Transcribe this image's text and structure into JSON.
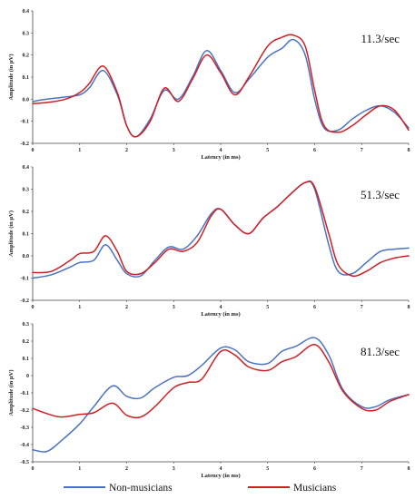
{
  "legend": [
    {
      "label": "Non-musicians",
      "color": "#4a72c4"
    },
    {
      "label": "Musicians",
      "color": "#d01f24"
    }
  ],
  "chart_data": [
    {
      "type": "line",
      "annotation": "11.3/sec",
      "xlabel": "Latency (in ms)",
      "ylabel": "Amplitude (in µV)",
      "xlim": [
        0,
        8
      ],
      "ylim": [
        -0.2,
        0.4
      ],
      "xticks": [
        0,
        1,
        2,
        3,
        4,
        5,
        6,
        7,
        8
      ],
      "yticks": [
        -0.2,
        -0.1,
        0.0,
        0.1,
        0.2,
        0.3,
        0.4
      ],
      "ytick_labels": [
        "-0.2",
        "-0.1",
        "0.0",
        "0.1",
        "0.2",
        "0.3",
        "0.4"
      ],
      "series": [
        {
          "name": "Non-musicians",
          "color": "#4a72c4",
          "x": [
            0,
            0.3,
            0.7,
            1.0,
            1.2,
            1.5,
            1.8,
            2.0,
            2.2,
            2.5,
            2.8,
            3.1,
            3.4,
            3.7,
            4.0,
            4.3,
            4.6,
            5.0,
            5.3,
            5.55,
            5.8,
            6.0,
            6.2,
            6.5,
            6.8,
            7.1,
            7.4,
            7.7,
            8.0
          ],
          "y": [
            -0.01,
            0.0,
            0.01,
            0.02,
            0.05,
            0.13,
            0.02,
            -0.12,
            -0.17,
            -0.09,
            0.04,
            0.0,
            0.1,
            0.22,
            0.13,
            0.03,
            0.09,
            0.19,
            0.23,
            0.27,
            0.2,
            0.0,
            -0.13,
            -0.14,
            -0.09,
            -0.05,
            -0.03,
            -0.06,
            -0.13
          ]
        },
        {
          "name": "Musicians",
          "color": "#d01f24",
          "x": [
            0,
            0.3,
            0.7,
            1.0,
            1.2,
            1.5,
            1.8,
            2.0,
            2.2,
            2.5,
            2.8,
            3.1,
            3.4,
            3.7,
            4.0,
            4.3,
            4.6,
            5.0,
            5.3,
            5.55,
            5.8,
            6.0,
            6.2,
            6.5,
            6.8,
            7.1,
            7.4,
            7.7,
            8.0
          ],
          "y": [
            -0.02,
            -0.015,
            0.0,
            0.03,
            0.07,
            0.15,
            0.03,
            -0.12,
            -0.17,
            -0.1,
            0.05,
            -0.01,
            0.09,
            0.2,
            0.12,
            0.02,
            0.1,
            0.24,
            0.28,
            0.29,
            0.24,
            0.04,
            -0.12,
            -0.15,
            -0.12,
            -0.07,
            -0.03,
            -0.05,
            -0.14
          ]
        }
      ]
    },
    {
      "type": "line",
      "annotation": "51.3/sec",
      "xlabel": "Latency (in ms)",
      "ylabel": "Amplitude (in µV)",
      "xlim": [
        0,
        8
      ],
      "ylim": [
        -0.2,
        0.4
      ],
      "xticks": [
        0,
        1,
        2,
        3,
        4,
        5,
        6,
        7,
        8
      ],
      "yticks": [
        -0.2,
        -0.1,
        0.0,
        0.1,
        0.2,
        0.3,
        0.4
      ],
      "ytick_labels": [
        "-0.2",
        "-0.1",
        "0.0",
        "0.1",
        "0.2",
        "0.3",
        "0.4"
      ],
      "series": [
        {
          "name": "Non-musicians",
          "color": "#4a72c4",
          "x": [
            0,
            0.4,
            0.8,
            1.0,
            1.3,
            1.55,
            1.8,
            2.0,
            2.3,
            2.6,
            2.9,
            3.2,
            3.5,
            3.8,
            4.0,
            4.3,
            4.6,
            4.9,
            5.2,
            5.5,
            5.8,
            6.0,
            6.3,
            6.5,
            6.8,
            7.1,
            7.4,
            7.7,
            8.0
          ],
          "y": [
            -0.1,
            -0.085,
            -0.05,
            -0.03,
            -0.02,
            0.05,
            -0.02,
            -0.08,
            -0.09,
            -0.02,
            0.04,
            0.03,
            0.09,
            0.19,
            0.21,
            0.14,
            0.1,
            0.17,
            0.22,
            0.28,
            0.33,
            0.3,
            0.05,
            -0.07,
            -0.08,
            -0.03,
            0.02,
            0.03,
            0.035
          ]
        },
        {
          "name": "Musicians",
          "color": "#d01f24",
          "x": [
            0,
            0.4,
            0.8,
            1.0,
            1.3,
            1.55,
            1.8,
            2.0,
            2.3,
            2.6,
            2.9,
            3.2,
            3.5,
            3.8,
            4.0,
            4.3,
            4.6,
            4.9,
            5.2,
            5.5,
            5.8,
            6.0,
            6.3,
            6.5,
            6.8,
            7.1,
            7.4,
            7.7,
            8.0
          ],
          "y": [
            -0.075,
            -0.07,
            -0.02,
            0.01,
            0.02,
            0.09,
            0.02,
            -0.07,
            -0.08,
            -0.03,
            0.03,
            0.02,
            0.06,
            0.18,
            0.21,
            0.14,
            0.1,
            0.17,
            0.22,
            0.28,
            0.33,
            0.31,
            0.1,
            -0.04,
            -0.09,
            -0.07,
            -0.03,
            -0.01,
            0.0
          ]
        }
      ]
    },
    {
      "type": "line",
      "annotation": "81.3/sec",
      "xlabel": "Latency (in ms)",
      "ylabel": "Amplitude (in µV)",
      "xlim": [
        0,
        8
      ],
      "ylim": [
        -0.5,
        0.3
      ],
      "xticks": [
        0,
        1,
        2,
        3,
        4,
        5,
        6,
        7,
        8
      ],
      "yticks": [
        -0.5,
        -0.4,
        -0.3,
        -0.2,
        -0.1,
        0.0,
        0.1,
        0.2,
        0.3
      ],
      "ytick_labels": [
        "-0.5",
        "-0.4",
        "-0.3",
        "-0.2",
        "-0.1",
        "0",
        "0.1",
        "0.2",
        "0.3"
      ],
      "series": [
        {
          "name": "Non-musicians",
          "color": "#4a72c4",
          "x": [
            0,
            0.3,
            0.6,
            1.0,
            1.3,
            1.7,
            2.0,
            2.3,
            2.6,
            3.0,
            3.3,
            3.6,
            4.0,
            4.3,
            4.6,
            5.0,
            5.3,
            5.6,
            6.0,
            6.3,
            6.6,
            7.0,
            7.3,
            7.6,
            8.0
          ],
          "y": [
            -0.43,
            -0.44,
            -0.38,
            -0.28,
            -0.18,
            -0.06,
            -0.12,
            -0.13,
            -0.07,
            -0.01,
            0.0,
            0.06,
            0.16,
            0.15,
            0.08,
            0.07,
            0.14,
            0.17,
            0.22,
            0.12,
            -0.08,
            -0.18,
            -0.18,
            -0.14,
            -0.11
          ]
        },
        {
          "name": "Musicians",
          "color": "#d01f24",
          "x": [
            0,
            0.3,
            0.6,
            1.0,
            1.3,
            1.7,
            2.0,
            2.3,
            2.6,
            3.0,
            3.3,
            3.6,
            4.0,
            4.3,
            4.6,
            5.0,
            5.3,
            5.6,
            6.0,
            6.3,
            6.6,
            7.0,
            7.3,
            7.6,
            8.0
          ],
          "y": [
            -0.19,
            -0.22,
            -0.24,
            -0.225,
            -0.215,
            -0.16,
            -0.23,
            -0.24,
            -0.18,
            -0.07,
            -0.04,
            -0.02,
            0.14,
            0.12,
            0.05,
            0.03,
            0.08,
            0.11,
            0.18,
            0.08,
            -0.09,
            -0.19,
            -0.2,
            -0.15,
            -0.11
          ]
        }
      ]
    }
  ]
}
